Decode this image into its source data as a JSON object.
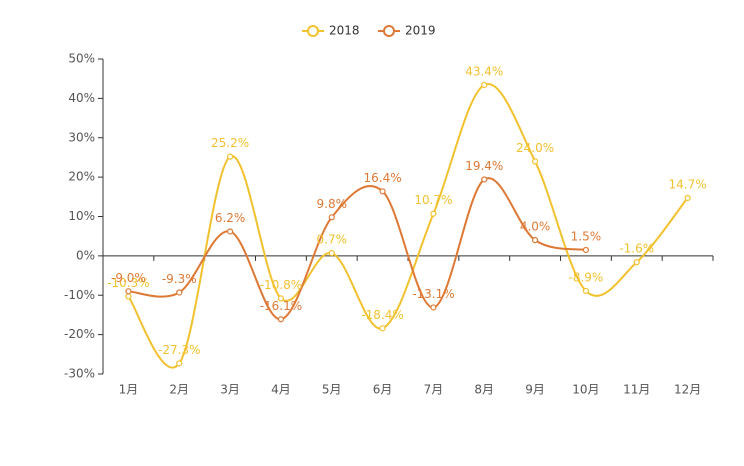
{
  "chart_data": {
    "type": "line",
    "categories": [
      "1月",
      "2月",
      "3月",
      "4月",
      "5月",
      "6月",
      "7月",
      "8月",
      "9月",
      "10月",
      "11月",
      "12月"
    ],
    "series": [
      {
        "name": "2018",
        "color": "#f2c12e",
        "values": [
          -10.3,
          -27.3,
          25.2,
          -10.8,
          0.7,
          -18.4,
          10.7,
          43.4,
          24.0,
          -8.9,
          -1.6,
          14.7
        ],
        "value_labels": [
          "-10.3%",
          "-27.3%",
          "25.2%",
          "-10.8%",
          "0.7%",
          "-18.4%",
          "10.7%",
          "43.4%",
          "24.0%",
          "-8.9%",
          "-1.6%",
          "14.7%"
        ]
      },
      {
        "name": "2019",
        "color": "#dd7935",
        "values": [
          -9.0,
          -9.3,
          6.2,
          -16.1,
          9.8,
          16.4,
          -13.1,
          19.4,
          4.0,
          1.5,
          null,
          null
        ],
        "value_labels": [
          "-9.0%",
          "-9.3%",
          "6.2%",
          "-16.1%",
          "9.8%",
          "16.4%",
          "-13.1%",
          "19.4%",
          "4.0%",
          "1.5%",
          null,
          null
        ]
      }
    ],
    "ylim": [
      -30,
      50
    ],
    "yticks": [
      {
        "value": -30,
        "label": "-30%"
      },
      {
        "value": -20,
        "label": "-20%"
      },
      {
        "value": -10,
        "label": "-10%"
      },
      {
        "value": 0,
        "label": "0%"
      },
      {
        "value": 10,
        "label": "10%"
      },
      {
        "value": 20,
        "label": "20%"
      },
      {
        "value": 30,
        "label": "30%"
      },
      {
        "value": 40,
        "label": "40%"
      },
      {
        "value": 50,
        "label": "50%"
      }
    ],
    "legend": "top"
  }
}
